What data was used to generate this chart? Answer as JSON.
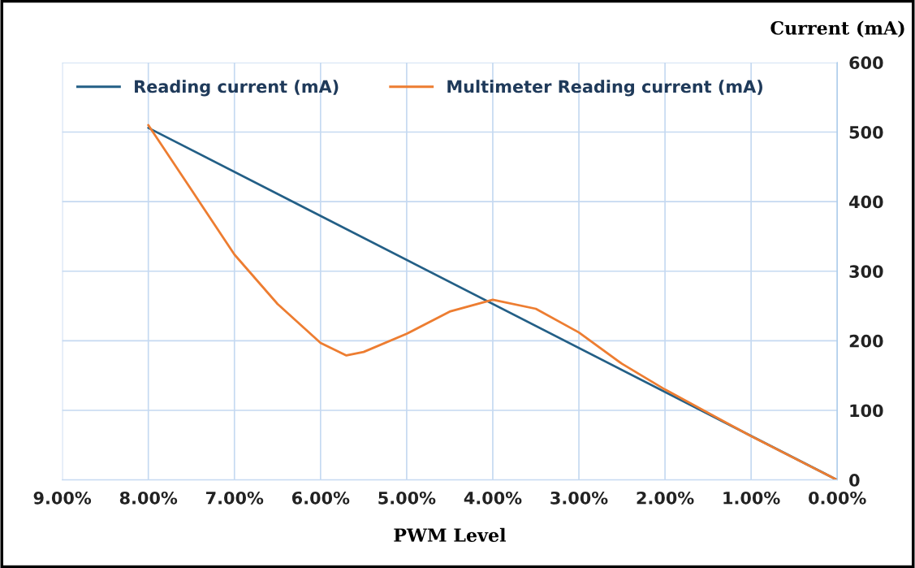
{
  "chart_data": {
    "type": "line",
    "xlabel": "PWM Level",
    "ylabel": "Current (mA)",
    "xlim": [
      9,
      0
    ],
    "xticks": [
      {
        "value": 9,
        "label": "9.00%"
      },
      {
        "value": 8,
        "label": "8.00%"
      },
      {
        "value": 7,
        "label": "7.00%"
      },
      {
        "value": 6,
        "label": "6.00%"
      },
      {
        "value": 5,
        "label": "5.00%"
      },
      {
        "value": 4,
        "label": "4.00%"
      },
      {
        "value": 3,
        "label": "3.00%"
      },
      {
        "value": 2,
        "label": "2.00%"
      },
      {
        "value": 1,
        "label": "1.00%"
      },
      {
        "value": 0,
        "label": "0.00%"
      }
    ],
    "ylim": [
      0,
      600
    ],
    "yticks": [
      0,
      100,
      200,
      300,
      400,
      500,
      600
    ],
    "grid": true,
    "legend": "top left",
    "marker": "none",
    "line_style": "solid",
    "series": [
      {
        "name": "Reading current (mA)",
        "color": "#235f86",
        "x": [
          8,
          0
        ],
        "values": [
          506,
          0
        ]
      },
      {
        "name": "Multimeter Reading current (mA)",
        "color": "#ed7d31",
        "x": [
          8,
          7.5,
          7,
          6.5,
          6,
          5.7,
          5.5,
          5,
          4.5,
          4,
          3.5,
          3,
          2.5,
          2,
          1,
          0
        ],
        "values": [
          510,
          417,
          324,
          253,
          197,
          179,
          184,
          210,
          242,
          259,
          246,
          212,
          167,
          130,
          63,
          0
        ]
      }
    ]
  }
}
